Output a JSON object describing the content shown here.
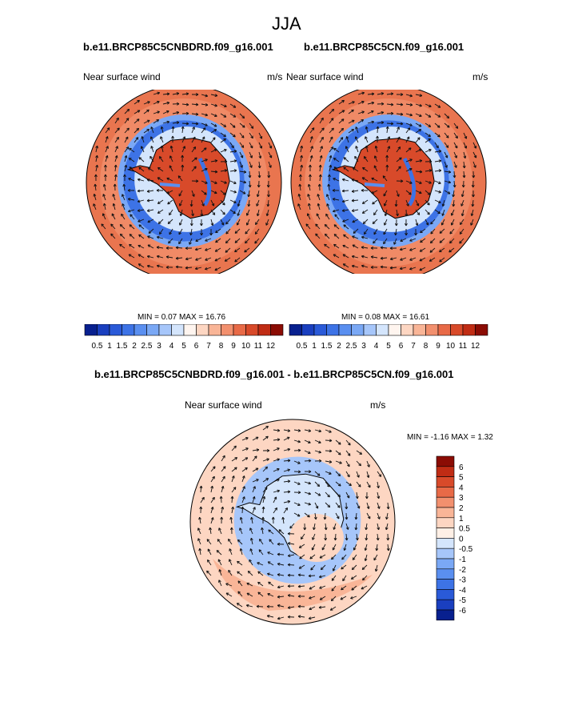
{
  "figure": {
    "title": "JJA"
  },
  "panels": {
    "left": {
      "case": "b.e11.BRCP85C5CNBDRD.f09_g16.001",
      "variable": "Near surface wind",
      "units": "m/s",
      "stats": "MIN =  0.07 MAX =  16.76"
    },
    "right": {
      "case": "b.e11.BRCP85C5CN.f09_g16.001",
      "variable": "Near surface wind",
      "units": "m/s",
      "stats": "MIN =  0.08 MAX =  16.61"
    },
    "diff": {
      "case": "b.e11.BRCP85C5CNBDRD.f09_g16.001 - b.e11.BRCP85C5CN.f09_g16.001",
      "variable": "Near surface wind",
      "units": "m/s",
      "stats": "MIN =  -1.16 MAX =  1.32"
    }
  },
  "colorbars": {
    "abs": {
      "labels": [
        "0.5",
        "1",
        "1.5",
        "2",
        "2.5",
        "3",
        "4",
        "5",
        "6",
        "7",
        "8",
        "9",
        "10",
        "11",
        "12"
      ],
      "colors": [
        "#08208f",
        "#1a3fbf",
        "#2a5ad8",
        "#3d73e6",
        "#5a8ff0",
        "#7aa8f5",
        "#a6c6fa",
        "#d4e5fc",
        "#fff5ef",
        "#fdd6c2",
        "#f9b597",
        "#f2906e",
        "#e86a47",
        "#d84a2a",
        "#c02c14",
        "#8b0c04"
      ]
    },
    "diff": {
      "labels": [
        "6",
        "5",
        "4",
        "3",
        "2",
        "1",
        "0.5",
        "0",
        "-0.5",
        "-1",
        "-2",
        "-3",
        "-4",
        "-5",
        "-6"
      ],
      "colors": [
        "#8b0c04",
        "#c02c14",
        "#d84a2a",
        "#e86a47",
        "#f2906e",
        "#f9b597",
        "#fdd6c2",
        "#fff0e6",
        "#d4e5fc",
        "#a6c6fa",
        "#7aa8f5",
        "#5a8ff0",
        "#3d73e6",
        "#2a5ad8",
        "#1a3fbf",
        "#08208f"
      ]
    }
  },
  "chart_data": [
    {
      "type": "heatmap",
      "title": "b.e11.BRCP85C5CNBDRD.f09_g16.001",
      "variable": "Near surface wind",
      "units": "m/s",
      "min": 0.07,
      "max": 16.76,
      "projection": "south polar stereographic",
      "vectors": true,
      "levels": [
        0.5,
        1,
        1.5,
        2,
        2.5,
        3,
        4,
        5,
        6,
        7,
        8,
        9,
        10,
        11,
        12
      ]
    },
    {
      "type": "heatmap",
      "title": "b.e11.BRCP85C5CN.f09_g16.001",
      "variable": "Near surface wind",
      "units": "m/s",
      "min": 0.08,
      "max": 16.61,
      "projection": "south polar stereographic",
      "vectors": true,
      "levels": [
        0.5,
        1,
        1.5,
        2,
        2.5,
        3,
        4,
        5,
        6,
        7,
        8,
        9,
        10,
        11,
        12
      ]
    },
    {
      "type": "heatmap",
      "title": "b.e11.BRCP85C5CNBDRD.f09_g16.001 - b.e11.BRCP85C5CN.f09_g16.001",
      "variable": "Near surface wind",
      "units": "m/s",
      "min": -1.16,
      "max": 1.32,
      "projection": "south polar stereographic",
      "vectors": true,
      "levels": [
        6,
        5,
        4,
        3,
        2,
        1,
        0.5,
        0,
        -0.5,
        -1,
        -2,
        -3,
        -4,
        -5,
        -6
      ]
    }
  ]
}
